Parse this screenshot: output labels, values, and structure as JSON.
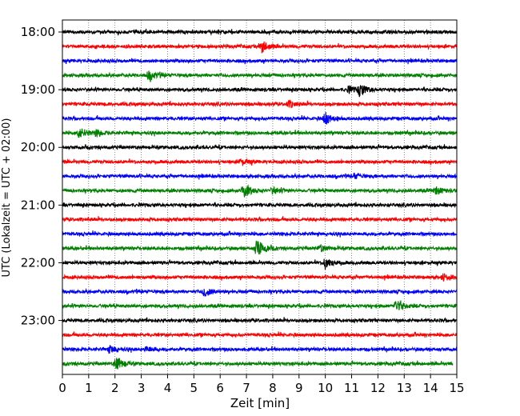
{
  "chart_data": {
    "type": "line",
    "title": "",
    "xlabel": "Zeit  [min]",
    "ylabel": "UTC (Lokalzeit = UTC + 02:00)",
    "xlim": [
      0,
      15
    ],
    "x_ticks": [
      0,
      1,
      2,
      3,
      4,
      5,
      6,
      7,
      8,
      9,
      10,
      11,
      12,
      13,
      14,
      15
    ],
    "y_tick_labels": [
      "18:00",
      "19:00",
      "20:00",
      "21:00",
      "22:00",
      "23:00"
    ],
    "grid": "vertical dotted",
    "trace_interval_minutes": 15,
    "colors": [
      "#000000",
      "#ff0000",
      "#0000ff",
      "#008000"
    ],
    "series": [
      {
        "start": "18:00",
        "color": "#000000",
        "events": []
      },
      {
        "start": "18:15",
        "color": "#ff0000",
        "events": [
          {
            "x": 7.6,
            "amp": 1.0
          }
        ]
      },
      {
        "start": "18:30",
        "color": "#0000ff",
        "events": []
      },
      {
        "start": "18:45",
        "color": "#008000",
        "events": [
          {
            "x": 3.3,
            "amp": 0.9
          }
        ]
      },
      {
        "start": "19:00",
        "color": "#000000",
        "events": [
          {
            "x": 11.3,
            "amp": 1.0
          },
          {
            "x": 10.9,
            "amp": 0.5
          }
        ]
      },
      {
        "start": "19:15",
        "color": "#ff0000",
        "events": [
          {
            "x": 8.6,
            "amp": 0.5
          }
        ]
      },
      {
        "start": "19:30",
        "color": "#0000ff",
        "events": [
          {
            "x": 10.0,
            "amp": 1.0
          }
        ]
      },
      {
        "start": "19:45",
        "color": "#008000",
        "events": [
          {
            "x": 0.65,
            "amp": 0.9
          },
          {
            "x": 1.3,
            "amp": 0.5
          }
        ]
      },
      {
        "start": "20:00",
        "color": "#000000",
        "events": []
      },
      {
        "start": "20:15",
        "color": "#ff0000",
        "events": [
          {
            "x": 6.8,
            "amp": 0.5
          }
        ]
      },
      {
        "start": "20:30",
        "color": "#0000ff",
        "events": [
          {
            "x": 11.1,
            "amp": 0.4
          }
        ]
      },
      {
        "start": "20:45",
        "color": "#008000",
        "events": [
          {
            "x": 6.9,
            "amp": 1.2
          },
          {
            "x": 8.0,
            "amp": 0.5
          },
          {
            "x": 14.2,
            "amp": 0.6
          }
        ]
      },
      {
        "start": "21:00",
        "color": "#000000",
        "events": []
      },
      {
        "start": "21:15",
        "color": "#ff0000",
        "events": []
      },
      {
        "start": "21:30",
        "color": "#0000ff",
        "events": []
      },
      {
        "start": "21:45",
        "color": "#008000",
        "events": [
          {
            "x": 7.4,
            "amp": 1.4
          },
          {
            "x": 9.8,
            "amp": 0.5
          }
        ]
      },
      {
        "start": "22:00",
        "color": "#000000",
        "events": [
          {
            "x": 10.0,
            "amp": 0.9
          }
        ]
      },
      {
        "start": "22:15",
        "color": "#ff0000",
        "events": [
          {
            "x": 14.5,
            "amp": 0.5
          }
        ]
      },
      {
        "start": "22:30",
        "color": "#0000ff",
        "events": [
          {
            "x": 5.4,
            "amp": 0.8
          }
        ]
      },
      {
        "start": "22:45",
        "color": "#008000",
        "events": [
          {
            "x": 12.7,
            "amp": 1.0
          }
        ]
      },
      {
        "start": "23:00",
        "color": "#000000",
        "events": []
      },
      {
        "start": "23:15",
        "color": "#ff0000",
        "events": []
      },
      {
        "start": "23:30",
        "color": "#0000ff",
        "events": [
          {
            "x": 1.8,
            "amp": 0.5
          },
          {
            "x": 3.2,
            "amp": 0.4
          }
        ]
      },
      {
        "start": "23:45",
        "color": "#008000",
        "events": [
          {
            "x": 2.05,
            "amp": 1.1
          }
        ]
      }
    ]
  }
}
